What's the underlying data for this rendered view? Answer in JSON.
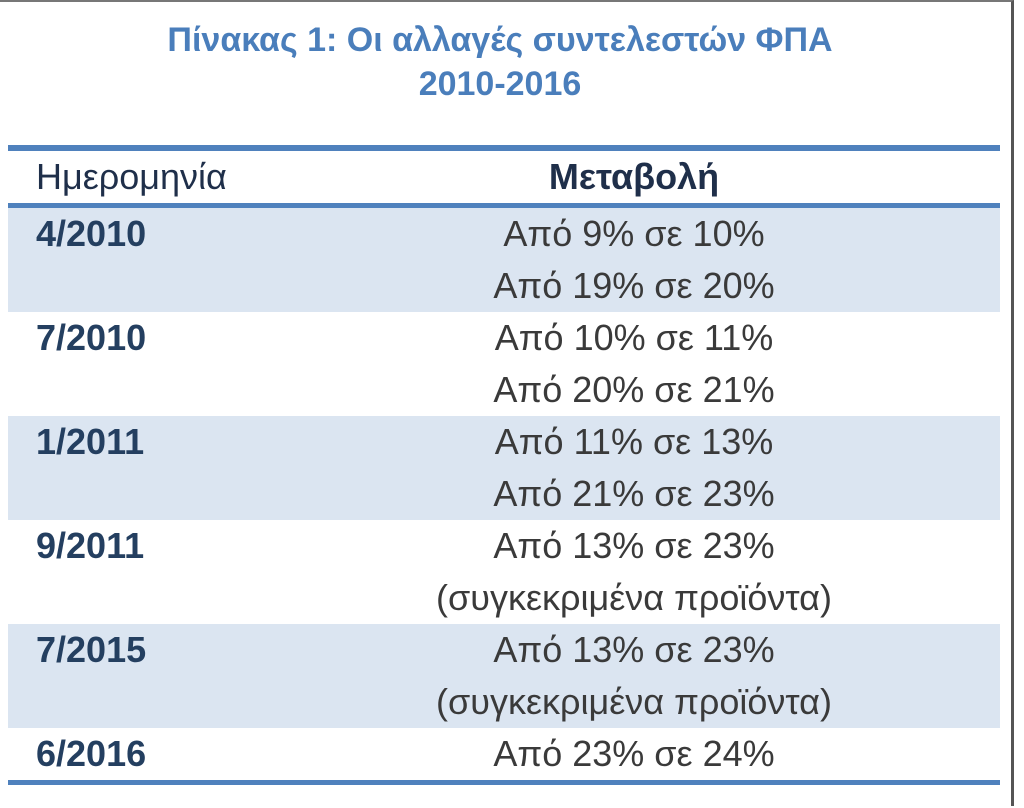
{
  "title": [
    "Πίνακας 1: Οι αλλαγές συντελεστών ΦΠΑ",
    "2010-2016"
  ],
  "table": {
    "header": [
      "Ημερομηνία",
      "Μεταβολή"
    ],
    "rows": [
      {
        "date": "4/2010",
        "changes": [
          "Από 9% σε 10%",
          "Από 19% σε 20%"
        ]
      },
      {
        "date": "7/2010",
        "changes": [
          "Από 10% σε 11%",
          "Από 20% σε 21%"
        ]
      },
      {
        "date": "1/2011",
        "changes": [
          "Από 11% σε 13%",
          "Από 21% σε 23%"
        ]
      },
      {
        "date": "9/2011",
        "changes": [
          "Από 13% σε 23%",
          "(συγκεκριμένα προϊόντα)"
        ]
      },
      {
        "date": "7/2015",
        "changes": [
          "Από 13% σε 23%",
          "(συγκεκριμένα προϊόντα)"
        ]
      },
      {
        "date": "6/2016",
        "changes": [
          "Από 23% σε 24%"
        ]
      }
    ]
  }
}
